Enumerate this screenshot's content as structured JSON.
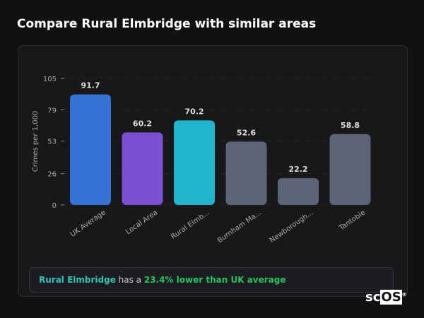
{
  "title": "Compare Rural Elmbridge with similar areas",
  "chart_data": {
    "type": "bar",
    "ylabel": "Crimes per 1,000",
    "xlabel": "",
    "ylim": [
      0,
      105
    ],
    "yticks": [
      0,
      26,
      53,
      79,
      105
    ],
    "grid": true,
    "categories": [
      "UK Average",
      "Local Area",
      "Rural Elmb...",
      "Burnham Ma...",
      "Newborough...",
      "Tantobie"
    ],
    "values": [
      91.7,
      60.2,
      70.2,
      52.6,
      22.2,
      58.8
    ],
    "data_labels": [
      "91.7",
      "60.2",
      "70.2",
      "52.6",
      "22.2",
      "58.8"
    ],
    "colors": [
      "#3572d8",
      "#7b4fd4",
      "#1fb6cc",
      "#5c6578",
      "#5c6578",
      "#5c6578"
    ]
  },
  "footer": {
    "area": "Rural Elmbridge",
    "middle": " has a ",
    "comparison": "23.4% lower than UK average"
  },
  "logo": {
    "text": "scOS"
  }
}
